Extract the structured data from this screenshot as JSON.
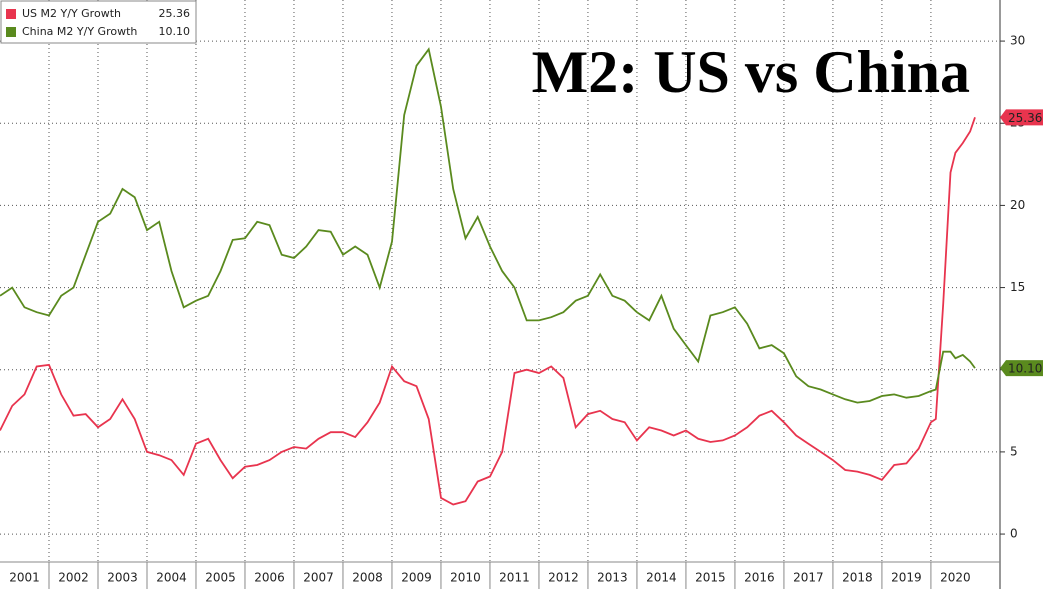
{
  "chart_data": {
    "type": "line",
    "title": "M2: US vs China",
    "x": [
      2001,
      2001.25,
      2001.5,
      2001.75,
      2002,
      2002.25,
      2002.5,
      2002.75,
      2003,
      2003.25,
      2003.5,
      2003.75,
      2004,
      2004.25,
      2004.5,
      2004.75,
      2005,
      2005.25,
      2005.5,
      2005.75,
      2006,
      2006.25,
      2006.5,
      2006.75,
      2007,
      2007.25,
      2007.5,
      2007.75,
      2008,
      2008.25,
      2008.5,
      2008.75,
      2009,
      2009.25,
      2009.5,
      2009.75,
      2010,
      2010.25,
      2010.5,
      2010.75,
      2011,
      2011.25,
      2011.5,
      2011.75,
      2012,
      2012.25,
      2012.5,
      2012.75,
      2013,
      2013.25,
      2013.5,
      2013.75,
      2014,
      2014.25,
      2014.5,
      2014.75,
      2015,
      2015.25,
      2015.5,
      2015.75,
      2016,
      2016.25,
      2016.5,
      2016.75,
      2017,
      2017.25,
      2017.5,
      2017.75,
      2018,
      2018.25,
      2018.5,
      2018.75,
      2019,
      2019.25,
      2019.5,
      2019.75,
      2020,
      2020.1,
      2020.25,
      2020.4,
      2020.5,
      2020.65,
      2020.8,
      2020.9
    ],
    "series": [
      {
        "name": "US M2 Y/Y Growth",
        "color": "#e8344e",
        "last_label": "25.36",
        "values": [
          6.3,
          7.8,
          8.5,
          10.2,
          10.3,
          8.5,
          7.2,
          7.3,
          6.5,
          7.0,
          8.2,
          7.0,
          5.0,
          4.8,
          4.5,
          3.6,
          5.5,
          5.8,
          4.5,
          3.4,
          4.1,
          4.2,
          4.5,
          5.0,
          5.3,
          5.2,
          5.8,
          6.2,
          6.2,
          5.9,
          6.8,
          8.0,
          10.2,
          9.3,
          9.0,
          7.0,
          2.2,
          1.8,
          2.0,
          3.2,
          3.5,
          5.0,
          9.8,
          10.0,
          9.8,
          10.2,
          9.5,
          6.5,
          7.3,
          7.5,
          7.0,
          6.8,
          5.7,
          6.5,
          6.3,
          6.0,
          6.3,
          5.8,
          5.6,
          5.7,
          6.0,
          6.5,
          7.2,
          7.5,
          6.8,
          6.0,
          5.5,
          5.0,
          4.5,
          3.9,
          3.8,
          3.6,
          3.3,
          4.2,
          4.3,
          5.2,
          6.8,
          7.0,
          14.0,
          22.0,
          23.2,
          23.8,
          24.5,
          25.36
        ]
      },
      {
        "name": "China M2 Y/Y Growth",
        "color": "#5a8a1e",
        "last_label": "10.10",
        "values": [
          14.5,
          15.0,
          13.8,
          13.5,
          13.3,
          14.5,
          15.0,
          17.0,
          19.0,
          19.5,
          21.0,
          20.5,
          18.5,
          19.0,
          16.0,
          13.8,
          14.2,
          14.5,
          16.0,
          17.9,
          18.0,
          19.0,
          18.8,
          17.0,
          16.8,
          17.5,
          18.5,
          18.4,
          17.0,
          17.5,
          17.0,
          15.0,
          17.8,
          25.5,
          28.5,
          29.5,
          26.0,
          21.0,
          18.0,
          19.3,
          17.5,
          16.0,
          15.0,
          13.0,
          13.0,
          13.2,
          13.5,
          14.2,
          14.5,
          15.8,
          14.5,
          14.2,
          13.5,
          13.0,
          14.5,
          12.5,
          11.5,
          10.5,
          13.3,
          13.5,
          13.8,
          12.8,
          11.3,
          11.5,
          11.0,
          9.6,
          9.0,
          8.8,
          8.5,
          8.2,
          8.0,
          8.1,
          8.4,
          8.5,
          8.3,
          8.4,
          8.7,
          8.8,
          11.1,
          11.1,
          10.7,
          10.9,
          10.5,
          10.1
        ]
      }
    ],
    "xlim": [
      2001,
      2021.41
    ],
    "xticks": [
      2001,
      2002,
      2003,
      2004,
      2005,
      2006,
      2007,
      2008,
      2009,
      2010,
      2011,
      2012,
      2013,
      2014,
      2015,
      2016,
      2017,
      2018,
      2019,
      2020
    ],
    "ylim": [
      -1.7,
      32.5
    ],
    "yticks": [
      0,
      5,
      10,
      15,
      20,
      25,
      30
    ],
    "grid": true,
    "legend": "upper left"
  }
}
